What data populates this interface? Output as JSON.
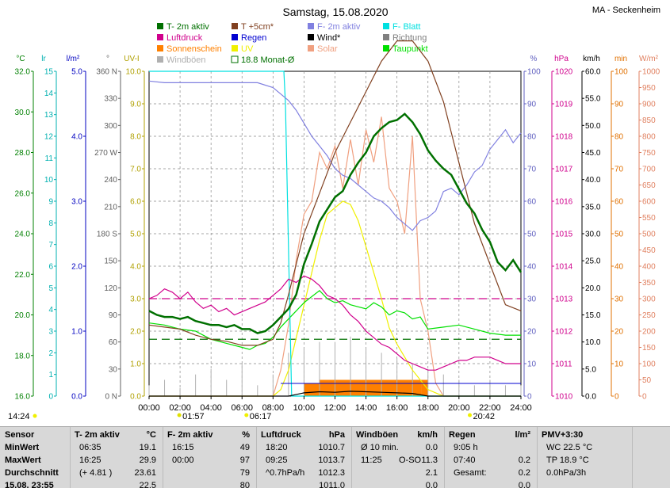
{
  "header": {
    "title": "Samstag, 15.08.2020",
    "station": "MA - Seckenheim"
  },
  "legend": [
    {
      "label": "T- 2m aktiv",
      "color": "#007000",
      "style": "box"
    },
    {
      "label": "T +5cm*",
      "color": "#804020",
      "style": "box"
    },
    {
      "label": "F- 2m aktiv",
      "color": "#8080e0",
      "style": "box"
    },
    {
      "label": "F- Blatt",
      "color": "#00e0e0",
      "style": "box"
    },
    {
      "label": "Luftdruck",
      "color": "#d0008c",
      "style": "box"
    },
    {
      "label": "Regen",
      "color": "#0000d0",
      "style": "box"
    },
    {
      "label": "Wind*",
      "color": "#000000",
      "style": "box"
    },
    {
      "label": "Richtung",
      "color": "#808080",
      "style": "box"
    },
    {
      "label": "Sonnenschein",
      "color": "#ff8000",
      "style": "box"
    },
    {
      "label": "UV",
      "color": "#f0f000",
      "style": "box"
    },
    {
      "label": "Solar",
      "color": "#f0a080",
      "style": "box"
    },
    {
      "label": "Taupunkt",
      "color": "#00e000",
      "style": "box"
    },
    {
      "label": "Windböen",
      "color": "#b0b0b0",
      "style": "box"
    },
    {
      "label": "18.8 Monat-Ø",
      "color": "#007000",
      "style": "outline"
    }
  ],
  "axes_units": {
    "temp": "°C",
    "lr": "lr",
    "rain": "l/m²",
    "dir": "°",
    "uv": "UV-I",
    "hum": "%",
    "press": "hPa",
    "wind": "km/h",
    "min": "min",
    "solar": "W/m²"
  },
  "axes_ticks": {
    "temp": [
      "16.0",
      "18.0",
      "20.0",
      "22.0",
      "24.0",
      "26.0",
      "28.0",
      "30.0",
      "32.0"
    ],
    "lr": [
      "0",
      "1",
      "2",
      "3",
      "4",
      "5",
      "6",
      "7",
      "8",
      "9",
      "10",
      "11",
      "12",
      "13",
      "14",
      "15"
    ],
    "rain": [
      "0.0",
      "1.0",
      "2.0",
      "3.0",
      "4.0",
      "5.0"
    ],
    "dir": [
      "0 N",
      "30",
      "60",
      "90",
      "120",
      "150",
      "180 S",
      "210",
      "240",
      "270 W",
      "300",
      "330",
      "360 N"
    ],
    "uv": [
      "0.0",
      "1.0",
      "2.0",
      "3.0",
      "4.0",
      "5.0",
      "6.0",
      "7.0",
      "8.0",
      "9.0",
      "10.0"
    ],
    "hum": [
      "0",
      "10",
      "20",
      "30",
      "40",
      "50",
      "60",
      "70",
      "80",
      "90",
      "100"
    ],
    "press": [
      "1010",
      "1011",
      "1012",
      "1013",
      "1014",
      "1015",
      "1016",
      "1017",
      "1018",
      "1019",
      "1020"
    ],
    "wind": [
      "0.0",
      "5.0",
      "10.0",
      "15.0",
      "20.0",
      "25.0",
      "30.0",
      "35.0",
      "40.0",
      "45.0",
      "50.0",
      "55.0",
      "60.0"
    ],
    "min": [
      "0",
      "10",
      "20",
      "30",
      "40",
      "50",
      "60",
      "70",
      "80",
      "90",
      "100"
    ],
    "solar": [
      "0",
      "50",
      "100",
      "150",
      "200",
      "250",
      "300",
      "350",
      "400",
      "450",
      "500",
      "550",
      "600",
      "650",
      "700",
      "750",
      "800",
      "850",
      "900",
      "950",
      "1000"
    ],
    "time": [
      "00:00",
      "02:00",
      "04:00",
      "06:00",
      "08:00",
      "10:00",
      "12:00",
      "14:00",
      "16:00",
      "18:00",
      "20:00",
      "22:00",
      "24:00"
    ]
  },
  "sun_moon": {
    "moon_rise": "01:57",
    "sunrise": "06:17",
    "sunset": "20:42",
    "moon_set": "14:24"
  },
  "chart_data": {
    "type": "line",
    "title": "Samstag, 15.08.2020",
    "xlabel": "",
    "xlim": [
      0,
      24
    ],
    "series": [
      {
        "name": "T- 2m aktiv",
        "unit": "°C",
        "color": "#007000",
        "x": [
          0,
          0.5,
          1,
          1.5,
          2,
          2.5,
          3,
          3.5,
          4,
          4.5,
          5,
          5.5,
          6,
          6.5,
          7,
          7.5,
          8,
          8.5,
          9,
          9.5,
          10,
          10.5,
          11,
          11.5,
          12,
          12.5,
          13,
          13.5,
          14,
          14.5,
          15,
          15.5,
          16,
          16.5,
          17,
          17.5,
          18,
          18.5,
          19,
          19.5,
          20,
          20.5,
          21,
          21.5,
          22,
          22.5,
          23,
          23.5,
          24
        ],
        "y": [
          20.2,
          20.0,
          19.9,
          19.9,
          19.8,
          19.9,
          19.7,
          19.6,
          19.5,
          19.5,
          19.4,
          19.5,
          19.3,
          19.3,
          19.1,
          19.2,
          19.5,
          19.9,
          20.3,
          21.0,
          22.5,
          23.5,
          24.6,
          25.2,
          25.8,
          26.1,
          26.9,
          27.5,
          28.0,
          28.8,
          29.2,
          29.5,
          29.6,
          29.9,
          29.5,
          28.9,
          28.1,
          27.6,
          27.2,
          26.9,
          26.2,
          25.5,
          25.0,
          24.2,
          23.6,
          22.6,
          22.2,
          22.7,
          22.1
        ]
      },
      {
        "name": "T +5cm*",
        "unit": "°C",
        "color": "#804020",
        "x": [
          0,
          1,
          2,
          3,
          4,
          5,
          6,
          7,
          8,
          8.5,
          9,
          9.5,
          10,
          11,
          12,
          13,
          14,
          15,
          16,
          17,
          18,
          19,
          20,
          21,
          22,
          23,
          24
        ],
        "y": [
          19.5,
          19.4,
          19.3,
          19.0,
          18.8,
          18.7,
          18.5,
          18.5,
          18.8,
          19.6,
          21.0,
          22.5,
          24.0,
          26.0,
          28.0,
          29.5,
          31.0,
          32.5,
          33.5,
          33.5,
          32.5,
          30.5,
          27.5,
          24.5,
          22.5,
          20.5,
          20.2
        ]
      },
      {
        "name": "F- 2m aktiv",
        "unit": "%",
        "color": "#8080e0",
        "x": [
          0,
          1,
          2,
          3,
          4,
          5,
          6,
          7,
          8,
          8.5,
          9,
          9.5,
          10,
          10.5,
          11,
          11.5,
          12,
          12.5,
          13,
          13.5,
          14,
          14.5,
          15,
          15.5,
          16,
          16.5,
          17,
          17.5,
          18,
          18.5,
          19,
          19.5,
          20,
          20.5,
          21,
          21.5,
          22,
          22.5,
          23,
          23.5,
          24
        ],
        "y": [
          97,
          96.5,
          96.5,
          96.5,
          96.5,
          96.5,
          96.5,
          96.5,
          95,
          93,
          91,
          88,
          84,
          80,
          77,
          74,
          70,
          68,
          67,
          65,
          63,
          61,
          60,
          58,
          55,
          53,
          51,
          54,
          55,
          57,
          63,
          64,
          62,
          65,
          69,
          71,
          76,
          79,
          82,
          78,
          81
        ]
      },
      {
        "name": "F- Blatt",
        "unit": "%",
        "color": "#00e0e0",
        "x": [
          0,
          8.7,
          8.8,
          9.2,
          24
        ],
        "y": [
          100,
          100,
          90,
          0,
          0
        ]
      },
      {
        "name": "Luftdruck",
        "unit": "hPa",
        "color": "#d0008c",
        "x": [
          0,
          0.5,
          1,
          1.5,
          2,
          2.5,
          3,
          3.5,
          4,
          4.5,
          5,
          5.5,
          6,
          6.5,
          7,
          7.5,
          8,
          8.5,
          9,
          9.5,
          10,
          10.5,
          11,
          11.5,
          12,
          12.5,
          13,
          13.5,
          14,
          14.5,
          15,
          15.5,
          16,
          16.5,
          17,
          17.5,
          18,
          18.5,
          19,
          19.5,
          20,
          20.5,
          21,
          21.5,
          22,
          22.5,
          23,
          23.5,
          24
        ],
        "y": [
          1013.0,
          1013.1,
          1013.3,
          1013.2,
          1013.0,
          1013.2,
          1012.9,
          1012.7,
          1012.8,
          1012.6,
          1012.7,
          1012.5,
          1012.6,
          1012.7,
          1012.8,
          1012.9,
          1013.1,
          1013.3,
          1013.6,
          1013.5,
          1013.7,
          1013.6,
          1013.4,
          1013.1,
          1013.0,
          1012.8,
          1012.5,
          1012.3,
          1012.0,
          1011.8,
          1011.6,
          1011.5,
          1011.3,
          1011.1,
          1011.0,
          1010.9,
          1010.8,
          1010.8,
          1010.9,
          1011.0,
          1011.1,
          1011.1,
          1011.2,
          1011.2,
          1011.2,
          1011.1,
          1011.0,
          1011.0,
          1011.0
        ]
      },
      {
        "name": "Taupunkt",
        "unit": "°C",
        "color": "#00e000",
        "x": [
          0,
          1,
          2,
          3,
          4,
          5,
          6,
          6.5,
          7,
          7.5,
          8,
          8.5,
          9,
          9.5,
          10,
          10.5,
          11,
          11.5,
          12,
          12.5,
          13,
          13.5,
          14,
          14.5,
          15,
          15.5,
          16,
          16.5,
          17,
          17.5,
          18,
          19,
          20,
          21,
          22,
          23,
          24
        ],
        "y": [
          19.6,
          19.5,
          19.3,
          19.2,
          18.8,
          18.6,
          18.4,
          18.3,
          18.5,
          18.6,
          18.9,
          19.4,
          19.8,
          20.2,
          20.6,
          20.9,
          21.2,
          20.8,
          20.6,
          20.7,
          20.5,
          20.4,
          20.3,
          20.6,
          20.4,
          20.0,
          20.2,
          20.1,
          19.8,
          19.9,
          19.3,
          19.4,
          19.5,
          19.3,
          19.1,
          19.0,
          19.0
        ]
      },
      {
        "name": "UV",
        "unit": "UV-I",
        "color": "#f0f000",
        "x": [
          0,
          8,
          8.5,
          9,
          9.5,
          10,
          10.5,
          11,
          11.5,
          12,
          12.5,
          13,
          13.5,
          14,
          14.5,
          15,
          15.5,
          16,
          16.5,
          17,
          17.5,
          18,
          18.5,
          19,
          24
        ],
        "y": [
          0,
          0,
          0.2,
          0.8,
          1.8,
          2.8,
          3.8,
          4.8,
          5.6,
          5.8,
          6.0,
          5.9,
          5.4,
          4.6,
          3.8,
          3.0,
          2.1,
          1.6,
          1.2,
          0.8,
          0.5,
          0.2,
          0.1,
          0,
          0
        ]
      },
      {
        "name": "Solar",
        "unit": "W/m²",
        "color": "#f0a080",
        "x": [
          0,
          8,
          8.5,
          9,
          9.5,
          10,
          10.5,
          11,
          11.5,
          12,
          12.5,
          13,
          13.5,
          14,
          14.5,
          15,
          15.5,
          16,
          16.5,
          17,
          17.5,
          18,
          18.5,
          19,
          24
        ],
        "y": [
          0,
          0,
          80,
          220,
          420,
          560,
          600,
          750,
          700,
          770,
          640,
          790,
          650,
          820,
          720,
          860,
          640,
          600,
          500,
          800,
          300,
          200,
          40,
          0,
          0
        ]
      },
      {
        "name": "Windböen",
        "unit": "km/h",
        "color": "#b0b0b0",
        "x": [
          0,
          1,
          2,
          3,
          4,
          5,
          6,
          7,
          8,
          9,
          10,
          11,
          12,
          13,
          14,
          15,
          16,
          17,
          18,
          19,
          20,
          21,
          22,
          23,
          24
        ],
        "y": [
          2,
          3,
          1.5,
          4,
          5,
          3,
          6,
          2,
          4,
          8,
          9,
          10,
          10,
          11,
          9,
          8,
          7,
          6,
          5,
          4,
          3,
          2,
          3,
          2,
          2
        ]
      },
      {
        "name": "Wind*",
        "unit": "km/h",
        "color": "#000000",
        "x": [
          0,
          9,
          10,
          11,
          12,
          13,
          14,
          15,
          16,
          17,
          18,
          24
        ],
        "y": [
          0,
          0,
          0.6,
          0.8,
          0.7,
          0.9,
          0.8,
          0.7,
          0.6,
          0.5,
          0,
          0
        ]
      },
      {
        "name": "Sonnenschein",
        "unit": "min",
        "color": "#ff8000",
        "x": [
          0,
          9.5,
          10,
          11,
          12,
          13,
          14,
          15,
          16,
          17,
          17.6,
          18,
          24
        ],
        "y": [
          0,
          0,
          4,
          5,
          5,
          5,
          5,
          5,
          5,
          5,
          5,
          0,
          0
        ]
      }
    ],
    "reference_lines": [
      {
        "label": "Luftdruck Ø",
        "value": 1013.0,
        "unit": "hPa",
        "color": "#d0008c"
      },
      {
        "label": "18.8 Monat-Ø",
        "value": 18.8,
        "unit": "°C",
        "color": "#007000"
      }
    ]
  },
  "stats": {
    "columns": [
      {
        "title": "Sensor",
        "unit": "",
        "rows": [
          [
            "MinWert",
            "",
            ""
          ],
          [
            "MaxWert",
            "",
            ""
          ],
          [
            "Durchschnitt",
            "",
            ""
          ],
          [
            "15.08. 23:55",
            "",
            ""
          ]
        ]
      },
      {
        "title": "T- 2m aktiv",
        "unit": "°C",
        "rows": [
          [
            "06:35",
            "",
            "19.1"
          ],
          [
            "16:25",
            "",
            "29.9"
          ],
          [
            "(+ 4.81 )",
            "",
            "23.61"
          ],
          [
            "",
            "",
            "22.5"
          ]
        ]
      },
      {
        "title": "F- 2m aktiv",
        "unit": "%",
        "rows": [
          [
            "16:15",
            "",
            "49"
          ],
          [
            "00:00",
            "",
            "97"
          ],
          [
            "",
            "",
            "79"
          ],
          [
            "",
            "",
            "80"
          ]
        ]
      },
      {
        "title": "Luftdruck",
        "unit": "hPa",
        "rows": [
          [
            "18:20",
            "",
            "1010.7"
          ],
          [
            "09:25",
            "",
            "1013.7"
          ],
          [
            "^0.7hPa/h",
            "",
            "1012.3"
          ],
          [
            "",
            "",
            "1011.0"
          ]
        ]
      },
      {
        "title": "Windböen",
        "unit": "km/h",
        "rows": [
          [
            "Ø 10 min.",
            "",
            "0.0"
          ],
          [
            "11:25",
            "O-SO",
            "11.3"
          ],
          [
            "",
            "",
            "2.1"
          ],
          [
            "",
            "",
            "0.0"
          ]
        ]
      },
      {
        "title": "Regen",
        "unit": "l/m²",
        "rows": [
          [
            "9:05 h",
            "",
            ""
          ],
          [
            "07:40",
            "",
            "0.2"
          ],
          [
            "Gesamt:",
            "",
            "0.2"
          ],
          [
            "",
            "",
            "0.0"
          ]
        ]
      },
      {
        "title": "PMV+3:30",
        "unit": "",
        "rows": [
          [
            "WC 22.5 °C",
            "",
            ""
          ],
          [
            "TP 18.9 °C",
            "",
            ""
          ],
          [
            "0.0hPa/3h",
            "",
            ""
          ],
          [
            "",
            "",
            ""
          ]
        ]
      }
    ]
  }
}
